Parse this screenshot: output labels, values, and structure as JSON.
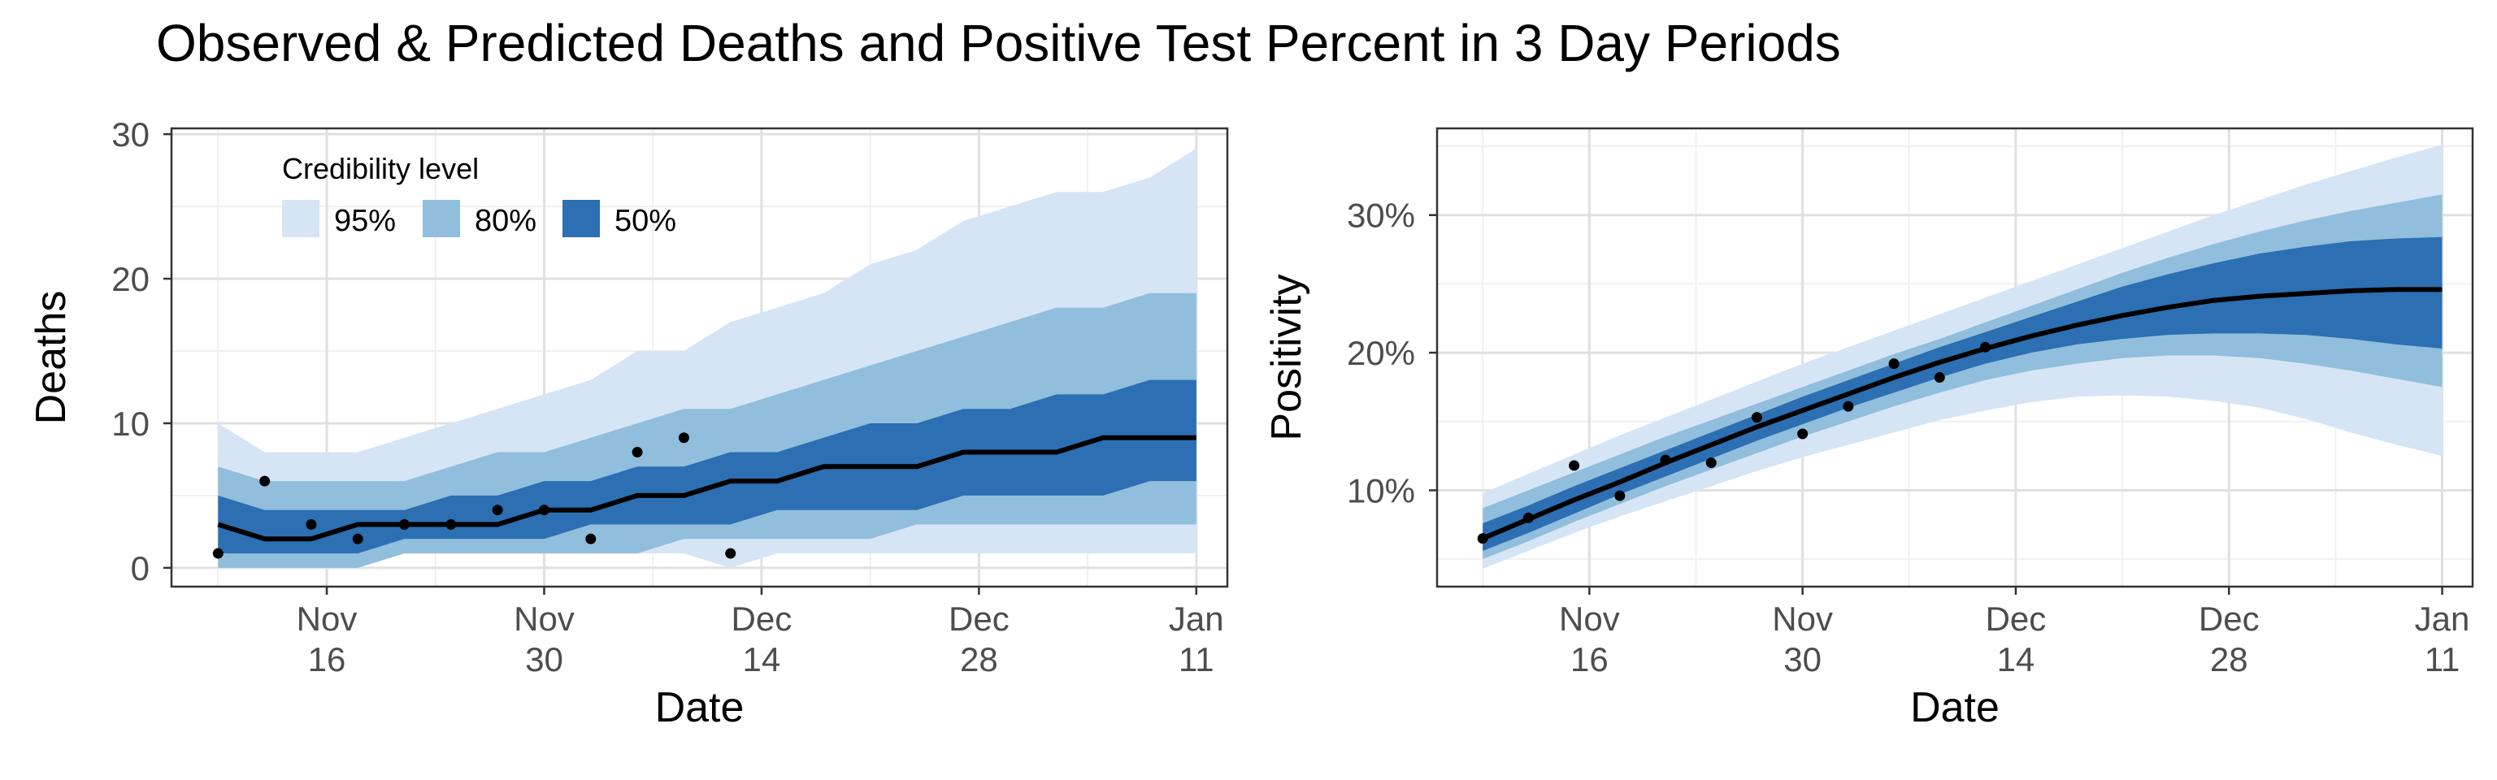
{
  "title": "Observed & Predicted Deaths and Positive Test Percent in 3 Day Periods",
  "colors": {
    "band_95": "#d6e5f5",
    "band_80": "#91bedc",
    "band_50": "#2c6fb2",
    "median": "#000000",
    "points": "#000000",
    "grid_major": "#e0e0e0",
    "grid_minor": "#f0f0f0"
  },
  "chart_data": [
    {
      "type": "area",
      "xlabel": "Date",
      "ylabel": "Deaths",
      "ylim": [
        -1.3,
        30.4
      ],
      "yticks": [
        0,
        10,
        20,
        30
      ],
      "ytick_labels": [
        "0",
        "10",
        "20",
        "30"
      ],
      "xlim": [
        "2020-11-06",
        "2021-01-13"
      ],
      "xticks": [
        "2020-11-16",
        "2020-11-30",
        "2020-12-14",
        "2020-12-28",
        "2021-01-11"
      ],
      "xtick_labels": [
        [
          "Nov",
          "16"
        ],
        [
          "Nov",
          "30"
        ],
        [
          "Dec",
          "14"
        ],
        [
          "Dec",
          "28"
        ],
        [
          "Jan",
          "11"
        ]
      ],
      "grid": true,
      "legend": {
        "title": "Credibility level",
        "position": "top-left",
        "items": [
          {
            "label": "95%",
            "color_key": "band_95"
          },
          {
            "label": "80%",
            "color_key": "band_80"
          },
          {
            "label": "50%",
            "color_key": "band_50"
          }
        ]
      },
      "dates": [
        "2020-11-09",
        "2020-11-12",
        "2020-11-15",
        "2020-11-18",
        "2020-11-21",
        "2020-11-24",
        "2020-11-27",
        "2020-11-30",
        "2020-12-03",
        "2020-12-06",
        "2020-12-09",
        "2020-12-12",
        "2020-12-15",
        "2020-12-18",
        "2020-12-21",
        "2020-12-24",
        "2020-12-27",
        "2020-12-30",
        "2021-01-02",
        "2021-01-05",
        "2021-01-08",
        "2021-01-11"
      ],
      "series": [
        {
          "name": "95%",
          "lower": [
            0,
            0,
            0,
            0,
            1,
            1,
            1,
            1,
            1,
            1,
            1,
            0,
            1,
            1,
            1,
            1,
            1,
            1,
            1,
            1,
            1,
            1
          ],
          "upper": [
            10,
            8,
            8,
            8,
            9,
            10,
            11,
            12,
            13,
            15,
            15,
            17,
            18,
            19,
            21,
            22,
            24,
            25,
            26,
            26,
            27,
            29
          ]
        },
        {
          "name": "80%",
          "lower": [
            0,
            0,
            0,
            0,
            1,
            1,
            1,
            1,
            1,
            1,
            2,
            2,
            2,
            2,
            2,
            3,
            3,
            3,
            3,
            3,
            3,
            3
          ],
          "upper": [
            7,
            6,
            6,
            6,
            6,
            7,
            8,
            8,
            9,
            10,
            11,
            11,
            12,
            13,
            14,
            15,
            16,
            17,
            18,
            18,
            19,
            19
          ]
        },
        {
          "name": "50%",
          "lower": [
            1,
            1,
            1,
            1,
            2,
            2,
            2,
            2,
            3,
            3,
            3,
            3,
            4,
            4,
            4,
            4,
            5,
            5,
            5,
            5,
            6,
            6
          ],
          "upper": [
            5,
            4,
            4,
            4,
            4,
            5,
            5,
            6,
            6,
            7,
            7,
            8,
            8,
            9,
            10,
            10,
            11,
            11,
            12,
            12,
            13,
            13
          ]
        },
        {
          "median": [
            3,
            2,
            2,
            3,
            3,
            3,
            3,
            4,
            4,
            5,
            5,
            6,
            6,
            7,
            7,
            7,
            8,
            8,
            8,
            9,
            9,
            9
          ]
        }
      ],
      "observed": [
        {
          "x": "2020-11-09",
          "y": 1
        },
        {
          "x": "2020-11-12",
          "y": 6
        },
        {
          "x": "2020-11-15",
          "y": 3
        },
        {
          "x": "2020-11-18",
          "y": 2
        },
        {
          "x": "2020-11-21",
          "y": 3
        },
        {
          "x": "2020-11-24",
          "y": 3
        },
        {
          "x": "2020-11-27",
          "y": 4
        },
        {
          "x": "2020-11-30",
          "y": 4
        },
        {
          "x": "2020-12-03",
          "y": 2
        },
        {
          "x": "2020-12-06",
          "y": 8
        },
        {
          "x": "2020-12-09",
          "y": 9
        },
        {
          "x": "2020-12-12",
          "y": 1
        }
      ]
    },
    {
      "type": "area",
      "xlabel": "Date",
      "ylabel": "Positivity",
      "ylim": [
        3.0,
        36.3
      ],
      "yticks": [
        10,
        20,
        30
      ],
      "ytick_labels": [
        "10%",
        "20%",
        "30%"
      ],
      "xlim": [
        "2020-11-06",
        "2021-01-13"
      ],
      "xticks": [
        "2020-11-16",
        "2020-11-30",
        "2020-12-14",
        "2020-12-28",
        "2021-01-11"
      ],
      "xtick_labels": [
        [
          "Nov",
          "16"
        ],
        [
          "Nov",
          "30"
        ],
        [
          "Dec",
          "14"
        ],
        [
          "Dec",
          "28"
        ],
        [
          "Jan",
          "11"
        ]
      ],
      "grid": true,
      "dates": [
        "2020-11-09",
        "2020-11-12",
        "2020-11-15",
        "2020-11-18",
        "2020-11-21",
        "2020-11-24",
        "2020-11-27",
        "2020-11-30",
        "2020-12-03",
        "2020-12-06",
        "2020-12-09",
        "2020-12-12",
        "2020-12-15",
        "2020-12-18",
        "2020-12-21",
        "2020-12-24",
        "2020-12-27",
        "2020-12-30",
        "2021-01-02",
        "2021-01-05",
        "2021-01-08",
        "2021-01-11"
      ],
      "series": [
        {
          "name": "95%",
          "lower": [
            4.3,
            5.6,
            6.9,
            8.1,
            9.2,
            10.3,
            11.4,
            12.4,
            13.3,
            14.2,
            15.1,
            15.8,
            16.4,
            16.8,
            16.9,
            16.8,
            16.5,
            16.0,
            15.2,
            14.2,
            13.3,
            12.5
          ],
          "upper": [
            9.8,
            11.2,
            12.6,
            14.0,
            15.3,
            16.6,
            17.9,
            19.2,
            20.4,
            21.6,
            22.8,
            24.0,
            25.2,
            26.4,
            27.6,
            28.8,
            30.0,
            31.1,
            32.2,
            33.2,
            34.2,
            35.1
          ]
        },
        {
          "name": "80%",
          "lower": [
            5.0,
            6.3,
            7.7,
            9.0,
            10.3,
            11.5,
            12.7,
            13.9,
            15.0,
            16.1,
            17.1,
            18.0,
            18.7,
            19.2,
            19.6,
            19.8,
            19.8,
            19.6,
            19.2,
            18.7,
            18.1,
            17.5
          ],
          "upper": [
            8.7,
            10.0,
            11.3,
            12.6,
            13.9,
            15.1,
            16.3,
            17.5,
            18.7,
            19.9,
            21.0,
            22.2,
            23.4,
            24.6,
            25.8,
            26.9,
            27.9,
            28.8,
            29.6,
            30.3,
            30.9,
            31.5
          ]
        },
        {
          "name": "50%",
          "lower": [
            5.6,
            6.9,
            8.3,
            9.7,
            11.0,
            12.3,
            13.6,
            14.8,
            16.0,
            17.1,
            18.2,
            19.2,
            20.0,
            20.6,
            21.0,
            21.3,
            21.4,
            21.4,
            21.3,
            21.0,
            20.6,
            20.3
          ],
          "upper": [
            7.6,
            8.9,
            10.3,
            11.6,
            12.9,
            14.2,
            15.5,
            16.8,
            18.0,
            19.2,
            20.4,
            21.5,
            22.6,
            23.7,
            24.8,
            25.7,
            26.5,
            27.2,
            27.7,
            28.1,
            28.3,
            28.4
          ]
        },
        {
          "median": [
            6.5,
            7.9,
            9.3,
            10.6,
            12.0,
            13.3,
            14.6,
            15.8,
            17.0,
            18.2,
            19.3,
            20.3,
            21.2,
            22.0,
            22.7,
            23.3,
            23.8,
            24.1,
            24.3,
            24.5,
            24.6,
            24.6
          ]
        }
      ],
      "observed": [
        {
          "x": "2020-11-09",
          "y": 6.5
        },
        {
          "x": "2020-11-12",
          "y": 8.0
        },
        {
          "x": "2020-11-15",
          "y": 11.8
        },
        {
          "x": "2020-11-18",
          "y": 9.6
        },
        {
          "x": "2020-11-21",
          "y": 12.2
        },
        {
          "x": "2020-11-24",
          "y": 12.0
        },
        {
          "x": "2020-11-27",
          "y": 15.3
        },
        {
          "x": "2020-11-30",
          "y": 14.1
        },
        {
          "x": "2020-12-03",
          "y": 16.1
        },
        {
          "x": "2020-12-06",
          "y": 19.2
        },
        {
          "x": "2020-12-09",
          "y": 18.2
        },
        {
          "x": "2020-12-12",
          "y": 20.4
        }
      ]
    }
  ]
}
